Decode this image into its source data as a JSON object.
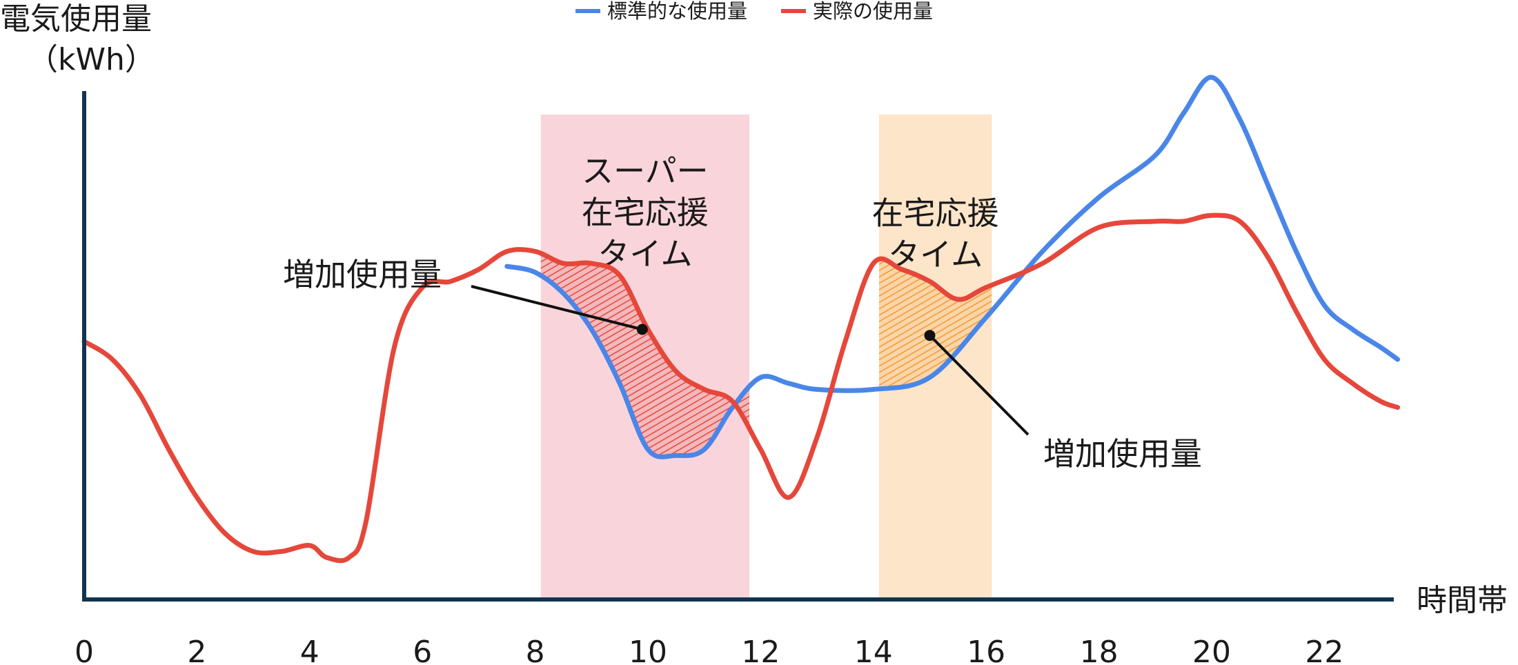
{
  "chart_data": {
    "type": "line",
    "title": "",
    "ylabel": "電気使用量",
    "ylabel_unit": "（kWh）",
    "xlabel": "時間帯",
    "xlim": [
      0,
      23.3
    ],
    "xticks": [
      0,
      2,
      4,
      6,
      8,
      10,
      12,
      14,
      16,
      18,
      20,
      22
    ],
    "grid": false,
    "legend_position": "top-center",
    "series": [
      {
        "name": "標準的な使用量",
        "color": "#4a86e8",
        "x": [
          7.5,
          8.0,
          8.5,
          9.0,
          9.5,
          10.0,
          10.5,
          11.0,
          11.5,
          12.0,
          12.5,
          13.0,
          14.0,
          15.0,
          16.0,
          17.0,
          18.0,
          19.0,
          19.5,
          20.0,
          20.5,
          21.0,
          21.5,
          22.0,
          22.5,
          23.0,
          23.3
        ],
        "y": [
          0.555,
          0.545,
          0.51,
          0.45,
          0.36,
          0.25,
          0.24,
          0.25,
          0.32,
          0.37,
          0.36,
          0.35,
          0.35,
          0.37,
          0.47,
          0.58,
          0.67,
          0.74,
          0.81,
          0.87,
          0.8,
          0.69,
          0.58,
          0.49,
          0.45,
          0.42,
          0.4
        ]
      },
      {
        "name": "実際の使用量",
        "color": "#e5473a",
        "x": [
          0.0,
          0.5,
          1.0,
          1.5,
          2.0,
          2.5,
          3.0,
          3.5,
          4.0,
          4.3,
          4.7,
          5.0,
          5.5,
          6.0,
          6.5,
          7.0,
          7.5,
          8.0,
          8.5,
          9.0,
          9.5,
          10.0,
          10.5,
          11.0,
          11.5,
          12.0,
          12.5,
          13.0,
          13.5,
          14.0,
          14.5,
          15.0,
          15.5,
          16.0,
          17.0,
          18.0,
          19.0,
          19.5,
          20.0,
          20.5,
          21.0,
          21.5,
          22.0,
          22.5,
          23.0,
          23.3
        ],
        "y": [
          0.43,
          0.4,
          0.34,
          0.25,
          0.17,
          0.11,
          0.08,
          0.08,
          0.09,
          0.07,
          0.07,
          0.13,
          0.42,
          0.52,
          0.53,
          0.55,
          0.58,
          0.58,
          0.56,
          0.56,
          0.54,
          0.45,
          0.38,
          0.35,
          0.33,
          0.25,
          0.17,
          0.27,
          0.43,
          0.56,
          0.55,
          0.53,
          0.5,
          0.52,
          0.56,
          0.62,
          0.63,
          0.63,
          0.64,
          0.63,
          0.57,
          0.48,
          0.4,
          0.36,
          0.33,
          0.32
        ]
      }
    ],
    "bands": [
      {
        "name": "super-home-support-band",
        "x_range": [
          8.1,
          11.8
        ],
        "color": "#f9d5db",
        "label_lines": [
          "スーパー",
          "在宅応援",
          "タイム"
        ]
      },
      {
        "name": "home-support-band",
        "x_range": [
          14.1,
          16.1
        ],
        "color": "#fde5ca",
        "label_lines": [
          "在宅応援",
          "タイム"
        ]
      }
    ],
    "annotations": [
      {
        "text": "増加使用量",
        "point": [
          9.9,
          0.45
        ],
        "x_range": [
          8.1,
          11.8
        ],
        "hatch_color": "#e5473a"
      },
      {
        "text": "増加使用量",
        "point": [
          15.0,
          0.44
        ],
        "x_range": [
          14.1,
          16.1
        ],
        "hatch_color": "#f09a33"
      }
    ]
  }
}
